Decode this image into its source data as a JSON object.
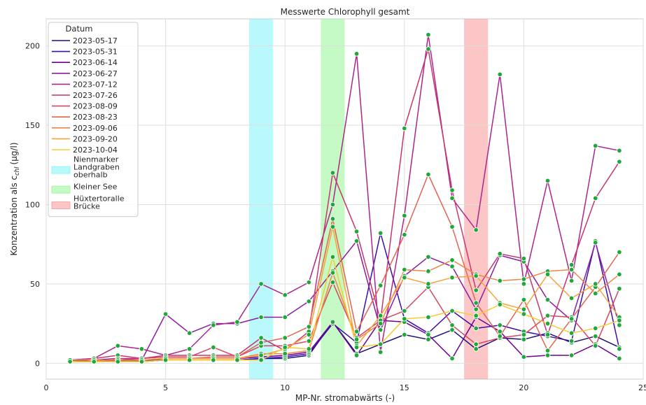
{
  "chart_data": {
    "type": "line",
    "title": "Messwerte Chlorophyll gesamt",
    "xlabel": "MP-Nr. stromabwärts (-)",
    "ylabel": "Konzentration als c",
    "ylabel_subscript": "chl",
    "ylabel_unit": "(µg/l)",
    "xlim": [
      0,
      25
    ],
    "ylim": [
      -10,
      217
    ],
    "xticks": [
      0,
      5,
      10,
      15,
      20,
      25
    ],
    "yticks": [
      0,
      50,
      100,
      150,
      200
    ],
    "grid": true,
    "legend_title": "Datum",
    "legend_position": "top-left",
    "marker_color": "#1fa83a",
    "bands": [
      {
        "label": "Nienmarker Landgraben oberhalb",
        "label_lines": [
          "Nienmarker",
          "Landgraben",
          "oberhalb"
        ],
        "x0": 8.5,
        "x1": 9.5,
        "color": "#7ff4f8"
      },
      {
        "label": "Kleiner See",
        "label_lines": [
          "Kleiner See"
        ],
        "x0": 11.5,
        "x1": 12.5,
        "color": "#95f595"
      },
      {
        "label": "Hüxtertoralle Brücke",
        "label_lines": [
          "Hüxtertoralle",
          "Brücke"
        ],
        "x0": 17.5,
        "x1": 18.5,
        "color": "#fa9898"
      }
    ],
    "x": [
      1,
      2,
      3,
      4,
      5,
      6,
      7,
      8,
      9,
      10,
      11,
      12,
      13,
      14,
      15,
      16,
      17,
      18,
      19,
      20,
      21,
      22,
      23,
      24
    ],
    "series": [
      {
        "name": "2023-05-17",
        "color": "#19117a",
        "values": [
          2,
          1,
          2,
          1,
          2,
          2,
          2,
          2,
          3,
          3,
          5,
          26,
          6,
          12,
          18,
          15,
          21,
          9,
          16,
          15,
          19,
          13,
          17,
          10
        ]
      },
      {
        "name": "2023-05-31",
        "color": "#3e0ea8",
        "values": [
          2,
          1,
          2,
          2,
          2,
          2,
          2,
          2,
          3,
          4,
          6,
          25,
          13,
          82,
          28,
          19,
          33,
          22,
          24,
          20,
          17,
          14,
          77,
          9
        ]
      },
      {
        "name": "2023-06-14",
        "color": "#6e0093",
        "values": [
          2,
          2,
          3,
          2,
          3,
          3,
          3,
          3,
          4,
          5,
          7,
          26,
          5,
          27,
          26,
          18,
          3,
          29,
          20,
          4,
          5,
          5,
          12,
          3
        ]
      },
      {
        "name": "2023-06-27",
        "color": "#8c1da3",
        "values": [
          2,
          2,
          1,
          2,
          31,
          19,
          25,
          25,
          29,
          29,
          39,
          58,
          77,
          21,
          55,
          67,
          61,
          34,
          68,
          64,
          40,
          27,
          76,
          24
        ]
      },
      {
        "name": "2023-07-12",
        "color": "#ac258e",
        "values": [
          2,
          3,
          11,
          9,
          5,
          9,
          24,
          26,
          50,
          43,
          51,
          100,
          195,
          7,
          93,
          207,
          104,
          84,
          182,
          50,
          115,
          52,
          137,
          134
        ]
      },
      {
        "name": "2023-07-26",
        "color": "#c7356f",
        "values": [
          2,
          3,
          5,
          3,
          5,
          5,
          5,
          5,
          16,
          8,
          20,
          120,
          83,
          27,
          148,
          198,
          109,
          46,
          69,
          66,
          18,
          62,
          104,
          127
        ]
      },
      {
        "name": "2023-08-09",
        "color": "#d84560",
        "values": [
          1,
          1,
          3,
          3,
          4,
          4,
          10,
          4,
          11,
          11,
          14,
          51,
          16,
          27,
          33,
          48,
          24,
          12,
          16,
          18,
          30,
          29,
          11,
          47
        ]
      },
      {
        "name": "2023-08-23",
        "color": "#e46250",
        "values": [
          2,
          2,
          2,
          2,
          3,
          3,
          4,
          4,
          13,
          16,
          23,
          91,
          20,
          49,
          81,
          119,
          86,
          38,
          17,
          40,
          8,
          28,
          48,
          70
        ]
      },
      {
        "name": "2023-09-06",
        "color": "#ef8545",
        "values": [
          2,
          2,
          2,
          2,
          3,
          3,
          3,
          3,
          6,
          6,
          8,
          57,
          15,
          25,
          59,
          58,
          65,
          56,
          52,
          53,
          58,
          59,
          44,
          56
        ]
      },
      {
        "name": "2023-09-20",
        "color": "#f7a33b",
        "values": [
          2,
          2,
          2,
          2,
          3,
          3,
          3,
          3,
          5,
          9,
          18,
          86,
          11,
          30,
          54,
          50,
          54,
          55,
          38,
          34,
          56,
          41,
          50,
          29
        ]
      },
      {
        "name": "2023-10-04",
        "color": "#f8cb34",
        "values": [
          1,
          1,
          1,
          1,
          2,
          2,
          2,
          2,
          2,
          10,
          9,
          67,
          10,
          12,
          28,
          29,
          33,
          30,
          37,
          31,
          25,
          19,
          22,
          27
        ]
      }
    ]
  }
}
